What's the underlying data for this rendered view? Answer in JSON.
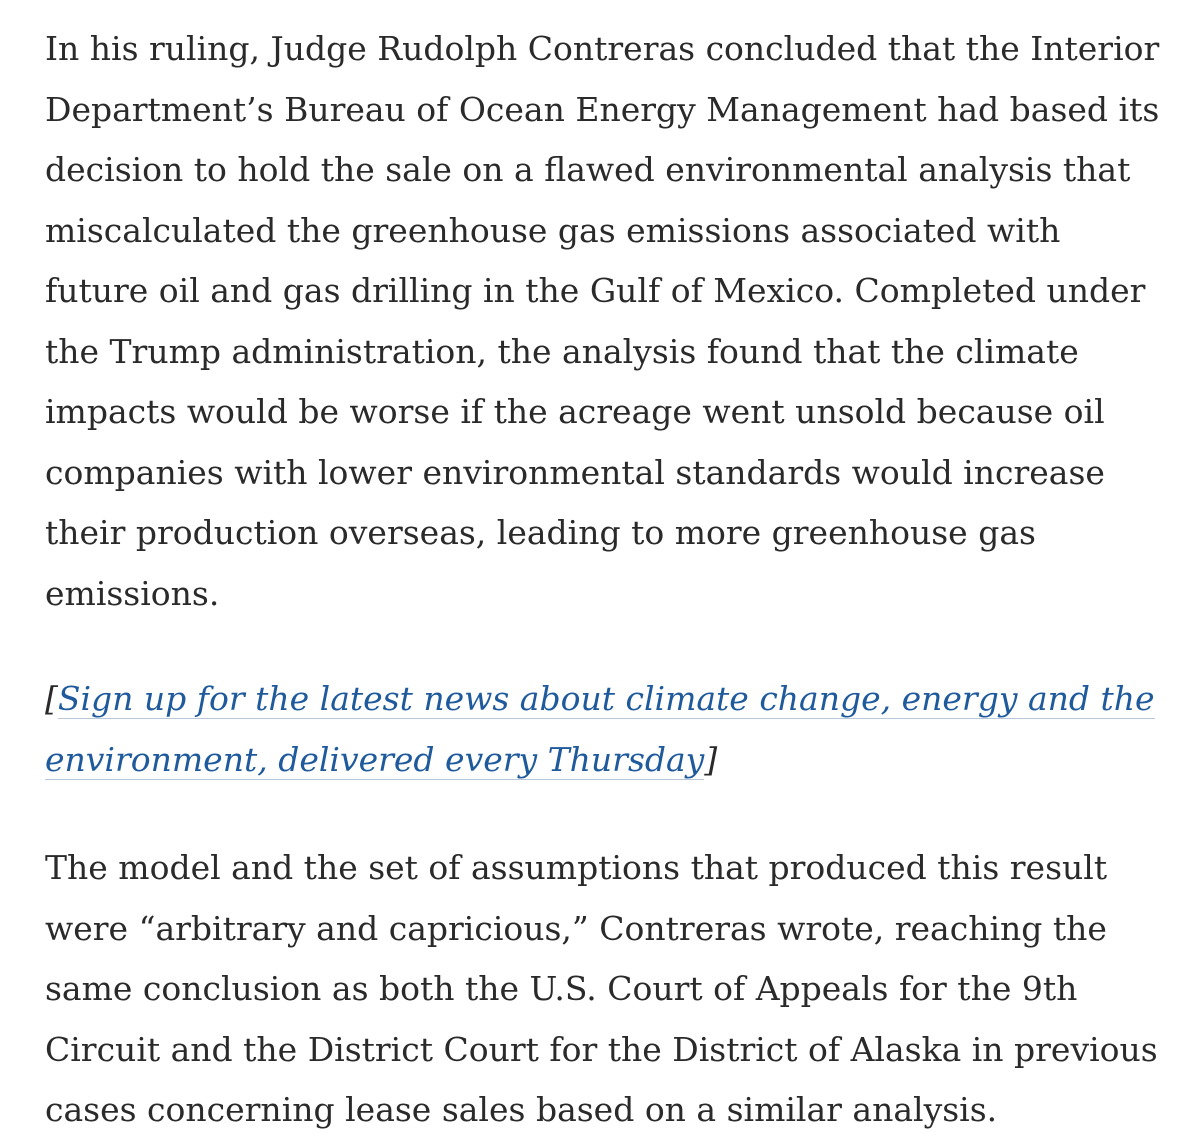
{
  "article": {
    "paragraph_1": "In his ruling, Judge Rudolph Contreras concluded that the Interior Department’s Bureau of Ocean Energy Management had based its decision to hold the sale on a flawed environmental analysis that miscalculated the greenhouse gas emissions associated with future oil and gas drilling in the Gulf of Mexico. Completed under the Trump administration, the analysis found that the climate impacts would be worse if the acreage went unsold because oil companies with lower environmental standards would increase their production overseas, leading to more greenhouse gas emissions.",
    "promo": {
      "open_bracket": "[",
      "link_text": "Sign up for the latest news about climate change, energy and the environment, delivered every Thursday",
      "close_bracket": "]"
    },
    "paragraph_2": "The model and the set of assumptions that produced this result were “arbitrary and capricious,” Contreras wrote, reaching the same conclusion as both the U.S. Court of Appeals for the 9th Circuit and the District Court for the District of Alaska in previous cases concerning lease sales based on a similar analysis."
  },
  "colors": {
    "text": "#2a2a2a",
    "link": "#1f5a9c",
    "background": "#ffffff"
  }
}
